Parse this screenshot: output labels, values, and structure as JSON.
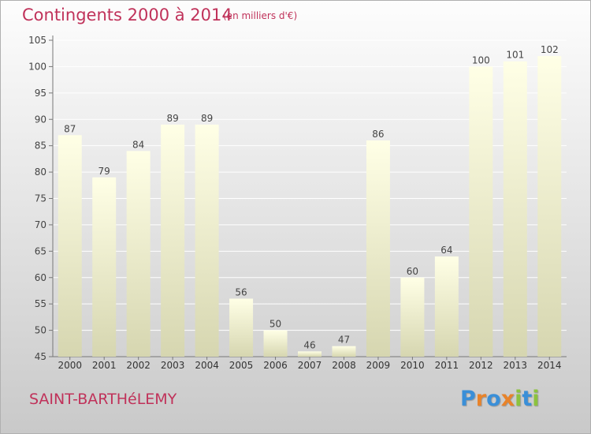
{
  "title": "Contingents 2000 à 2014",
  "subtitle": "(en milliers d'€)",
  "commune": "SAINT-BARTHéLEMY",
  "logo": {
    "text": "Proxiti",
    "letters": [
      {
        "ch": "P",
        "color": "#3a8fd8"
      },
      {
        "ch": "r",
        "color": "#e8832a"
      },
      {
        "ch": "o",
        "color": "#3a8fd8"
      },
      {
        "ch": "x",
        "color": "#e8832a"
      },
      {
        "ch": "i",
        "color": "#8cc23e"
      },
      {
        "ch": "t",
        "color": "#3a8fd8"
      },
      {
        "ch": "i",
        "color": "#8cc23e"
      }
    ]
  },
  "colors": {
    "title": "#c0325a",
    "bar_top": "#ffffe6",
    "bar_bottom": "#d6d6b0"
  },
  "chart_data": {
    "type": "bar",
    "categories": [
      "2000",
      "2001",
      "2002",
      "2003",
      "2004",
      "2005",
      "2006",
      "2007",
      "2008",
      "2009",
      "2010",
      "2011",
      "2012",
      "2013",
      "2014"
    ],
    "values": [
      87,
      79,
      84,
      89,
      89,
      56,
      50,
      46,
      47,
      86,
      60,
      64,
      100,
      101,
      102
    ],
    "ylim": [
      45,
      105
    ],
    "yticks": [
      45,
      50,
      55,
      60,
      65,
      70,
      75,
      80,
      85,
      90,
      95,
      100,
      105
    ],
    "grid": true,
    "title": "Contingents 2000 à 2014",
    "xlabel": "",
    "ylabel": ""
  }
}
